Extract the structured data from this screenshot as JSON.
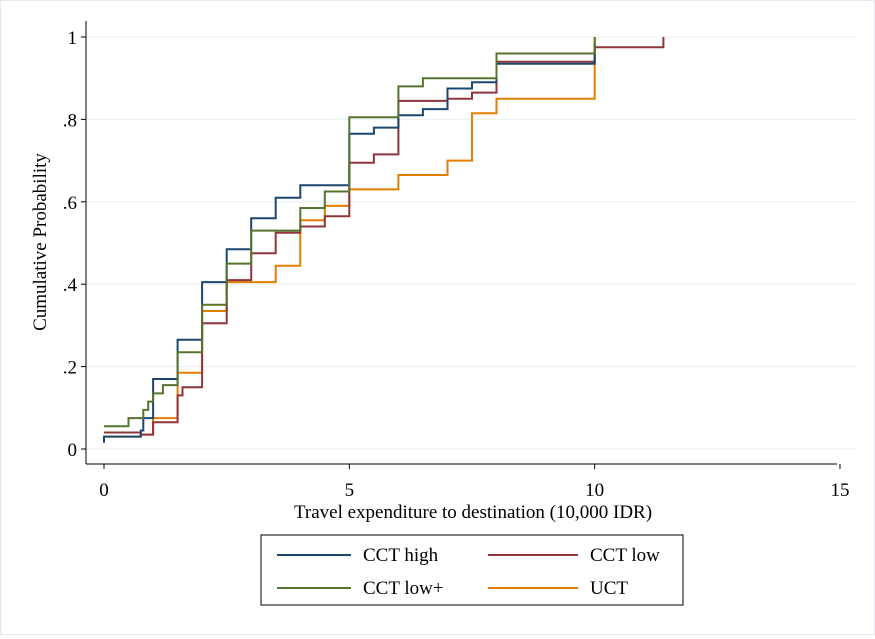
{
  "chart_data": {
    "type": "line",
    "xlabel": "Travel expenditure to destination (10,000 IDR)",
    "ylabel": "Cumulative Probability",
    "xlim": [
      0,
      15
    ],
    "ylim": [
      0,
      1
    ],
    "x_ticks": [
      {
        "value": 0,
        "label": "0"
      },
      {
        "value": 5,
        "label": "5"
      },
      {
        "value": 10,
        "label": "10"
      },
      {
        "value": 15,
        "label": "15"
      }
    ],
    "y_ticks": [
      {
        "value": 0,
        "label": "0"
      },
      {
        "value": 0.2,
        "label": ".2"
      },
      {
        "value": 0.4,
        "label": ".4"
      },
      {
        "value": 0.6,
        "label": ".6"
      },
      {
        "value": 0.8,
        "label": ".8"
      },
      {
        "value": 1,
        "label": "1"
      }
    ],
    "grid": true,
    "legend_position": "bottom",
    "step": true,
    "series": [
      {
        "name": "CCT high",
        "color": "#1a476f",
        "points": [
          [
            0,
            0.015
          ],
          [
            0,
            0.03
          ],
          [
            0.75,
            0.03
          ],
          [
            0.75,
            0.045
          ],
          [
            0.8,
            0.045
          ],
          [
            0.8,
            0.075
          ],
          [
            1,
            0.075
          ],
          [
            1,
            0.17
          ],
          [
            1.5,
            0.17
          ],
          [
            1.5,
            0.265
          ],
          [
            2,
            0.265
          ],
          [
            2,
            0.405
          ],
          [
            2.5,
            0.405
          ],
          [
            2.5,
            0.485
          ],
          [
            3,
            0.485
          ],
          [
            3,
            0.56
          ],
          [
            3.5,
            0.56
          ],
          [
            3.5,
            0.61
          ],
          [
            4,
            0.61
          ],
          [
            4,
            0.64
          ],
          [
            5,
            0.64
          ],
          [
            5,
            0.765
          ],
          [
            5.5,
            0.765
          ],
          [
            5.5,
            0.78
          ],
          [
            6,
            0.78
          ],
          [
            6,
            0.81
          ],
          [
            6.5,
            0.81
          ],
          [
            6.5,
            0.825
          ],
          [
            7,
            0.825
          ],
          [
            7,
            0.875
          ],
          [
            7.5,
            0.875
          ],
          [
            7.5,
            0.89
          ],
          [
            8,
            0.89
          ],
          [
            8,
            0.935
          ],
          [
            10,
            0.935
          ],
          [
            10,
            0.985
          ]
        ]
      },
      {
        "name": "CCT low",
        "color": "#90353b",
        "points": [
          [
            0,
            0.04
          ],
          [
            0.75,
            0.04
          ],
          [
            0.75,
            0.035
          ],
          [
            1,
            0.035
          ],
          [
            1,
            0.065
          ],
          [
            1.5,
            0.065
          ],
          [
            1.5,
            0.13
          ],
          [
            1.6,
            0.13
          ],
          [
            1.6,
            0.15
          ],
          [
            2,
            0.15
          ],
          [
            2,
            0.305
          ],
          [
            2.5,
            0.305
          ],
          [
            2.5,
            0.41
          ],
          [
            3,
            0.41
          ],
          [
            3,
            0.475
          ],
          [
            3.5,
            0.475
          ],
          [
            3.5,
            0.525
          ],
          [
            4,
            0.525
          ],
          [
            4,
            0.54
          ],
          [
            4.5,
            0.54
          ],
          [
            4.5,
            0.565
          ],
          [
            5,
            0.565
          ],
          [
            5,
            0.695
          ],
          [
            5.5,
            0.695
          ],
          [
            5.5,
            0.715
          ],
          [
            6,
            0.715
          ],
          [
            6,
            0.845
          ],
          [
            7,
            0.845
          ],
          [
            7,
            0.85
          ],
          [
            7.5,
            0.85
          ],
          [
            7.5,
            0.865
          ],
          [
            8,
            0.865
          ],
          [
            8,
            0.94
          ],
          [
            10,
            0.94
          ],
          [
            10,
            0.975
          ],
          [
            11.4,
            0.975
          ],
          [
            11.4,
            1
          ]
        ]
      },
      {
        "name": "CCT low+",
        "color": "#55752f",
        "points": [
          [
            0,
            0.055
          ],
          [
            0.5,
            0.055
          ],
          [
            0.5,
            0.075
          ],
          [
            0.8,
            0.075
          ],
          [
            0.8,
            0.095
          ],
          [
            0.9,
            0.095
          ],
          [
            0.9,
            0.115
          ],
          [
            1,
            0.115
          ],
          [
            1,
            0.135
          ],
          [
            1.2,
            0.135
          ],
          [
            1.2,
            0.155
          ],
          [
            1.5,
            0.155
          ],
          [
            1.5,
            0.235
          ],
          [
            2,
            0.235
          ],
          [
            2,
            0.35
          ],
          [
            2.5,
            0.35
          ],
          [
            2.5,
            0.45
          ],
          [
            3,
            0.45
          ],
          [
            3,
            0.53
          ],
          [
            4,
            0.53
          ],
          [
            4,
            0.585
          ],
          [
            4.5,
            0.585
          ],
          [
            4.5,
            0.625
          ],
          [
            5,
            0.625
          ],
          [
            5,
            0.805
          ],
          [
            6,
            0.805
          ],
          [
            6,
            0.88
          ],
          [
            6.5,
            0.88
          ],
          [
            6.5,
            0.9
          ],
          [
            8,
            0.9
          ],
          [
            8,
            0.96
          ],
          [
            10,
            0.96
          ],
          [
            10,
            1
          ]
        ]
      },
      {
        "name": "UCT",
        "color": "#e37e00",
        "points": [
          [
            0,
            0.03
          ],
          [
            0.75,
            0.03
          ],
          [
            0.75,
            0.035
          ],
          [
            1,
            0.035
          ],
          [
            1,
            0.075
          ],
          [
            1.5,
            0.075
          ],
          [
            1.5,
            0.185
          ],
          [
            2,
            0.185
          ],
          [
            2,
            0.335
          ],
          [
            2.5,
            0.335
          ],
          [
            2.5,
            0.405
          ],
          [
            3.5,
            0.405
          ],
          [
            3.5,
            0.445
          ],
          [
            4,
            0.445
          ],
          [
            4,
            0.555
          ],
          [
            4.5,
            0.555
          ],
          [
            4.5,
            0.59
          ],
          [
            5,
            0.59
          ],
          [
            5,
            0.63
          ],
          [
            6,
            0.63
          ],
          [
            6,
            0.665
          ],
          [
            7,
            0.665
          ],
          [
            7,
            0.7
          ],
          [
            7.5,
            0.7
          ],
          [
            7.5,
            0.815
          ],
          [
            8,
            0.815
          ],
          [
            8,
            0.85
          ],
          [
            10,
            0.85
          ],
          [
            10,
            1
          ]
        ]
      }
    ]
  }
}
